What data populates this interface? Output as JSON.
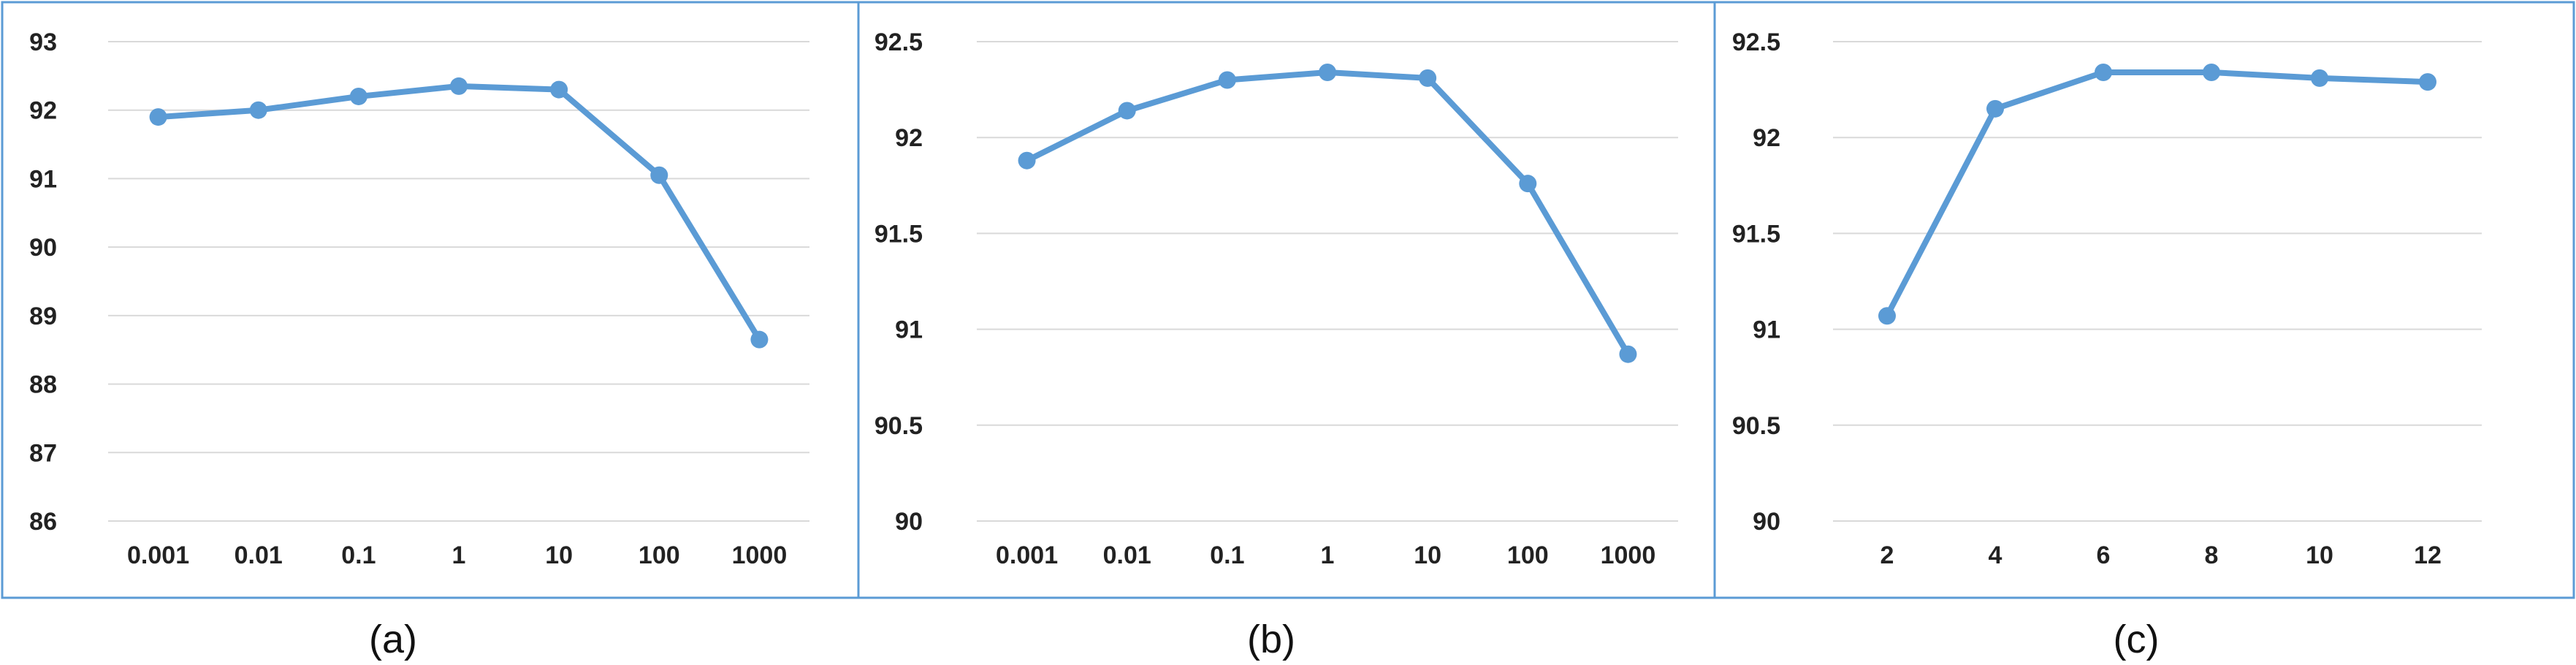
{
  "colors": {
    "series": "#5b9bd5",
    "frame": "#5b9bd5",
    "grid": "#d9d9d9"
  },
  "chart_data": [
    {
      "type": "line",
      "caption": "(a)",
      "categories": [
        "0.001",
        "0.01",
        "0.1",
        "1",
        "10",
        "100",
        "1000"
      ],
      "values": [
        91.9,
        92.0,
        92.2,
        92.35,
        92.3,
        91.05,
        88.65
      ],
      "ylim": [
        86,
        93
      ],
      "yticks": [
        86,
        87,
        88,
        89,
        90,
        91,
        92,
        93
      ],
      "ytick_labels": [
        "86",
        "87",
        "88",
        "89",
        "90",
        "91",
        "92",
        "93"
      ],
      "grid": true
    },
    {
      "type": "line",
      "caption": "(b)",
      "categories": [
        "0.001",
        "0.01",
        "0.1",
        "1",
        "10",
        "100",
        "1000"
      ],
      "values": [
        91.88,
        92.14,
        92.3,
        92.34,
        92.31,
        91.76,
        90.87
      ],
      "ylim": [
        90,
        92.5
      ],
      "yticks": [
        90,
        90.5,
        91,
        91.5,
        92,
        92.5
      ],
      "ytick_labels": [
        "90",
        "90.5",
        "91",
        "91.5",
        "92",
        "92.5"
      ],
      "grid": true
    },
    {
      "type": "line",
      "caption": "(c)",
      "categories": [
        "2",
        "4",
        "6",
        "8",
        "10",
        "12"
      ],
      "values": [
        91.07,
        92.15,
        92.34,
        92.34,
        92.31,
        92.29
      ],
      "ylim": [
        90,
        92.5
      ],
      "yticks": [
        90,
        90.5,
        91,
        91.5,
        92,
        92.5
      ],
      "ytick_labels": [
        "90",
        "90.5",
        "91",
        "91.5",
        "92",
        "92.5"
      ],
      "grid": true
    }
  ]
}
